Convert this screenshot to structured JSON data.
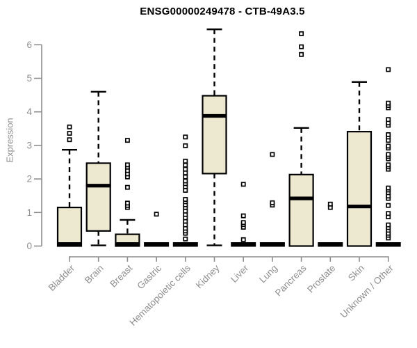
{
  "chart_data": {
    "type": "boxplot",
    "title": "ENSG00000249478 - CTB-49A3.5",
    "xlabel": "",
    "ylabel": "Expression",
    "ylim": [
      0,
      6.6
    ],
    "yticks": [
      0,
      1,
      2,
      3,
      4,
      5,
      6
    ],
    "grid": false,
    "legend": "none",
    "colors": {
      "box_fill": "#EDE9D0",
      "box_stroke": "#000000",
      "median": "#000000",
      "outlier_stroke": "#000000",
      "axis": "#8e8e8e",
      "tick_label": "#8e8e8e",
      "title": "#000000"
    },
    "categories": [
      "Bladder",
      "Brain",
      "Breast",
      "Gastric",
      "Hematopoietic cells",
      "Kidney",
      "Liver",
      "Lung",
      "Pancreas",
      "Prostate",
      "Skin",
      "Unknown / Other"
    ],
    "series": [
      {
        "label": "Bladder",
        "q1": 0,
        "median": 0,
        "q3": 1.15,
        "whisker_low": 0,
        "whisker_high": 2.87,
        "outliers": [
          3.17,
          3.36,
          3.55
        ]
      },
      {
        "label": "Brain",
        "q1": 0.45,
        "median": 1.8,
        "q3": 2.47,
        "whisker_low": 0.02,
        "whisker_high": 4.6,
        "outliers": []
      },
      {
        "label": "Breast",
        "q1": 0,
        "median": 0,
        "q3": 0.35,
        "whisker_low": 0,
        "whisker_high": 0.78,
        "outliers": [
          1.15,
          1.21,
          1.28,
          1.75,
          2.06,
          2.15,
          2.25,
          2.35,
          2.42,
          3.15
        ]
      },
      {
        "label": "Gastric",
        "q1": 0,
        "median": 0,
        "q3": 0,
        "whisker_low": 0,
        "whisker_high": 0,
        "outliers": [
          0.95
        ]
      },
      {
        "label": "Hematopoietic cells",
        "q1": 0,
        "median": 0,
        "q3": 0,
        "whisker_low": 0,
        "whisker_high": 0,
        "outliers": [
          0.21,
          0.38,
          0.45,
          0.53,
          0.63,
          0.74,
          0.84,
          0.94,
          1.04,
          1.15,
          1.23,
          1.32,
          1.39,
          1.66,
          1.77,
          1.86,
          1.94,
          2.06,
          2.18,
          2.29,
          2.41,
          2.53,
          2.99,
          3.25
        ]
      },
      {
        "label": "Kidney",
        "q1": 2.16,
        "median": 3.88,
        "q3": 4.48,
        "whisker_low": 0.02,
        "whisker_high": 6.46,
        "outliers": []
      },
      {
        "label": "Liver",
        "q1": 0,
        "median": 0,
        "q3": 0,
        "whisker_low": 0,
        "whisker_high": 0,
        "outliers": [
          0.19,
          0.56,
          0.64,
          0.7,
          0.9,
          1.84
        ]
      },
      {
        "label": "Lung",
        "q1": 0,
        "median": 0,
        "q3": 0,
        "whisker_low": 0,
        "whisker_high": 0,
        "outliers": [
          1.22,
          1.29,
          2.73
        ]
      },
      {
        "label": "Pancreas",
        "q1": 0,
        "median": 1.42,
        "q3": 2.13,
        "whisker_low": 0,
        "whisker_high": 3.52,
        "outliers": [
          5.71,
          5.94,
          6.33
        ]
      },
      {
        "label": "Prostate",
        "q1": 0,
        "median": 0,
        "q3": 0,
        "whisker_low": 0,
        "whisker_high": 0,
        "outliers": [
          1.15,
          1.25
        ]
      },
      {
        "label": "Skin",
        "q1": 0,
        "median": 1.18,
        "q3": 3.41,
        "whisker_low": 0,
        "whisker_high": 4.89,
        "outliers": []
      },
      {
        "label": "Unknown / Other",
        "q1": 0,
        "median": 0,
        "q3": 0,
        "whisker_low": 0,
        "whisker_high": 0,
        "outliers": [
          0.24,
          0.32,
          0.38,
          0.47,
          0.55,
          0.63,
          0.87,
          0.97,
          1.21,
          1.42,
          1.49,
          1.59,
          1.67,
          1.73,
          2.29,
          2.36,
          2.42,
          2.6,
          2.67,
          2.73,
          2.92,
          2.98,
          3.15,
          3.25,
          3.32,
          3.6,
          3.67,
          3.77,
          4.12,
          4.19,
          4.26,
          5.26
        ]
      }
    ]
  }
}
